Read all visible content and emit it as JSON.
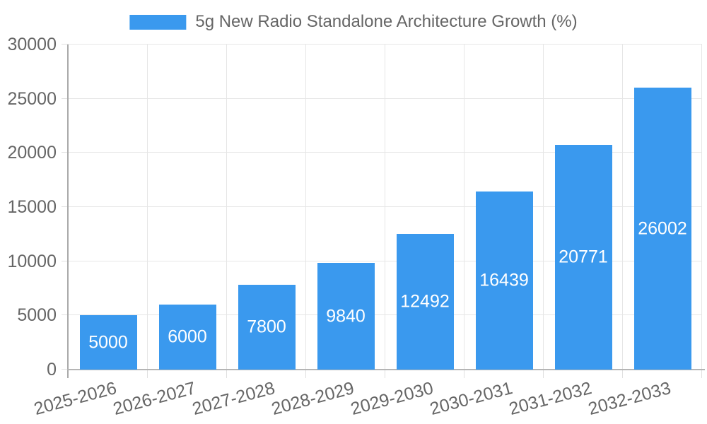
{
  "chart_data": {
    "type": "bar",
    "series_name": "5g New Radio Standalone Architecture Growth (%)",
    "categories": [
      "2025-2026",
      "2026-2027",
      "2027-2028",
      "2028-2029",
      "2029-2030",
      "2030-2031",
      "2031-2032",
      "2032-2033"
    ],
    "values": [
      5000,
      6000,
      7800,
      9840,
      12492,
      16439,
      20771,
      26002
    ],
    "value_labels": [
      "5000",
      "6000",
      "7800",
      "9840",
      "12492",
      "16439",
      "20771",
      "26002"
    ],
    "title": "",
    "xlabel": "",
    "ylabel": "",
    "ylim": [
      0,
      30000
    ],
    "yticks": [
      0,
      5000,
      10000,
      15000,
      20000,
      25000,
      30000
    ],
    "grid": true,
    "legend_position": "top",
    "bar_color": "#3a99ee",
    "value_label_color": "#ffffff",
    "axis_label_color": "#666666",
    "gridline_color": "#e6e6e6",
    "axis_line_color": "#aaaaaa"
  }
}
